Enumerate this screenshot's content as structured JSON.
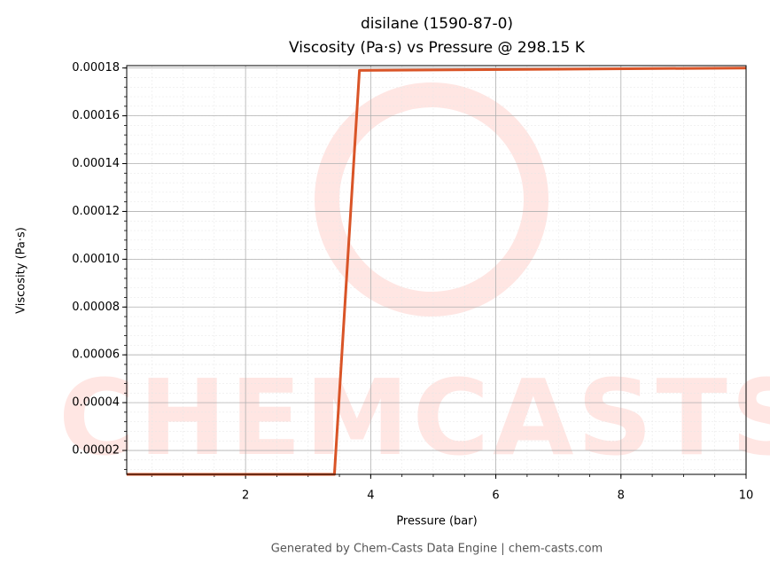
{
  "chart_data": {
    "type": "line",
    "title": "disilane (1590-87-0)",
    "subtitle": "Viscosity (Pa·s) vs Pressure @ 298.15 K",
    "x_label": "Pressure (bar)",
    "y_label": "Viscosity (Pa·s)",
    "footer": "Generated by Chem-Casts Data Engine | chem-casts.com",
    "watermark": "CHEMCASTS",
    "x": [
      0.1,
      3.42,
      3.82,
      10
    ],
    "series": [
      {
        "name": "Viscosity",
        "color": "#d95427",
        "values": [
          1e-05,
          1e-05,
          0.000179,
          0.00018
        ]
      }
    ],
    "xlim": [
      0.1,
      10
    ],
    "ylim": [
      1e-05,
      0.000181
    ],
    "xticks": [
      2,
      4,
      6,
      8,
      10
    ],
    "yticks": [
      2e-05,
      4e-05,
      6e-05,
      8e-05,
      {
        "value": 0.0001,
        "label": "0.00010"
      },
      0.00012,
      0.00014,
      0.00016,
      0.00018
    ],
    "grid": true,
    "minor_grid": true
  }
}
